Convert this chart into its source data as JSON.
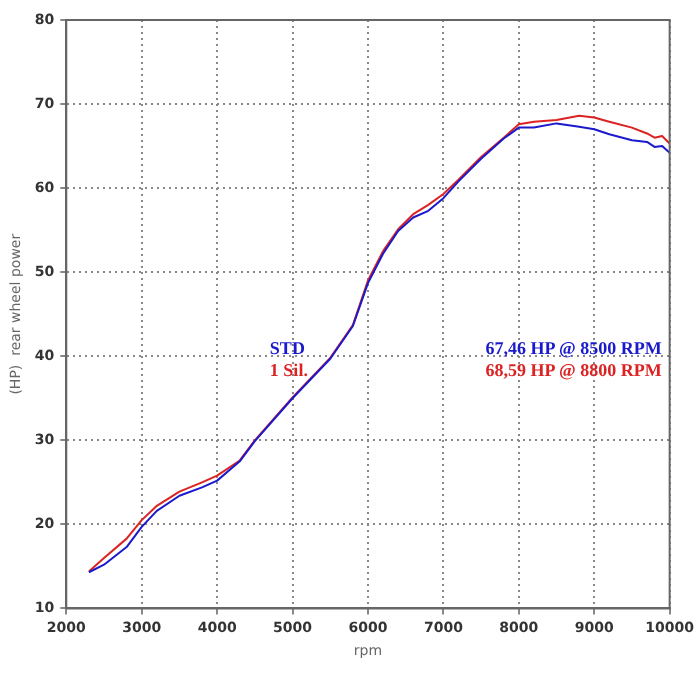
{
  "chart_data": {
    "type": "line",
    "xlabel": "rpm",
    "ylabel": "(HP)  rear wheel power",
    "xlim": [
      2000,
      10000
    ],
    "xticks": [
      2000,
      3000,
      4000,
      5000,
      6000,
      7000,
      8000,
      9000,
      10000
    ],
    "ylim": [
      10,
      80
    ],
    "yticks": [
      10,
      20,
      30,
      40,
      50,
      60,
      70,
      80
    ],
    "x": [
      2300,
      2500,
      2800,
      3000,
      3200,
      3500,
      3800,
      4000,
      4300,
      4500,
      5000,
      5500,
      5800,
      6000,
      6200,
      6400,
      6600,
      6800,
      7000,
      7200,
      7500,
      7800,
      8000,
      8200,
      8500,
      8800,
      9000,
      9200,
      9500,
      9700,
      9800,
      9900,
      10000
    ],
    "series": [
      {
        "name": "STD",
        "color": "#1a1acc",
        "values": [
          14.3,
          15.2,
          17.3,
          19.7,
          21.6,
          23.4,
          24.4,
          25.2,
          27.5,
          29.9,
          35,
          39.7,
          43.6,
          48.7,
          52.2,
          54.9,
          56.5,
          57.3,
          58.8,
          60.8,
          63.5,
          65.9,
          67.2,
          67.2,
          67.7,
          67.3,
          67,
          66.4,
          65.7,
          65.5,
          64.9,
          65,
          64.2
        ]
      },
      {
        "name": "1 Sil.",
        "color": "#dd2222",
        "values": [
          14.4,
          16,
          18.3,
          20.5,
          22.2,
          23.9,
          25,
          25.8,
          27.6,
          30,
          35.1,
          39.8,
          43.7,
          49,
          52.5,
          55.1,
          56.9,
          58,
          59.3,
          61,
          63.7,
          66,
          67.6,
          67.9,
          68.1,
          68.6,
          68.4,
          67.9,
          67.2,
          66.5,
          66,
          66.2,
          65.3
        ]
      }
    ],
    "annotations": [
      "67,46 HP @ 8500 RPM",
      "68,59 HP @ 8800 RPM"
    ],
    "grid": true,
    "legend": "center",
    "line_style": "solid",
    "marker": "none"
  }
}
